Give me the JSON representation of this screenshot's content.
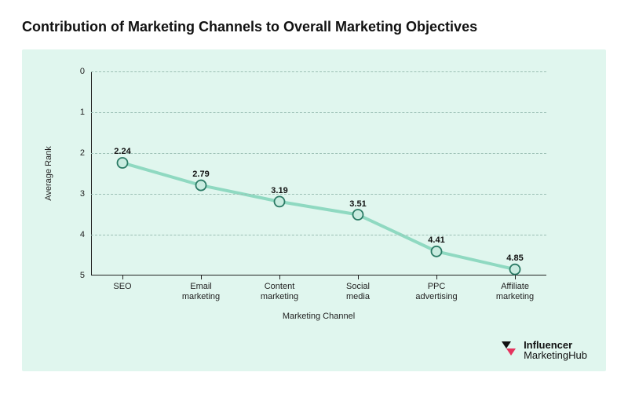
{
  "title": "Contribution of Marketing Channels to Overall Marketing Objectives",
  "chart": {
    "type": "line",
    "panel_bg": "#e0f6ee",
    "grid_color": "#9bbfb4",
    "line_color": "#8fd9c1",
    "line_width": 4,
    "marker_fill": "#c9ece0",
    "marker_stroke": "#2a7a64",
    "marker_stroke_width": 1.8,
    "marker_radius": 6.5,
    "axis_color": "#222222",
    "x_label": "Marketing Channel",
    "y_label": "Average Rank",
    "y_min": 0,
    "y_max": 5,
    "y_ticks": [
      0,
      1,
      2,
      3,
      4,
      5
    ],
    "label_fontsize": 11,
    "value_fontsize": 11,
    "categories": [
      "SEO",
      "Email marketing",
      "Content marketing",
      "Social media",
      "PPC advertising",
      "Affiliate marketing"
    ],
    "values": [
      2.24,
      2.79,
      3.19,
      3.51,
      4.41,
      4.85
    ]
  },
  "brand": {
    "name_bold": "Influencer",
    "name_light": "MarketingHub",
    "logo_color_a": "#e5345e",
    "logo_color_b": "#111111"
  }
}
